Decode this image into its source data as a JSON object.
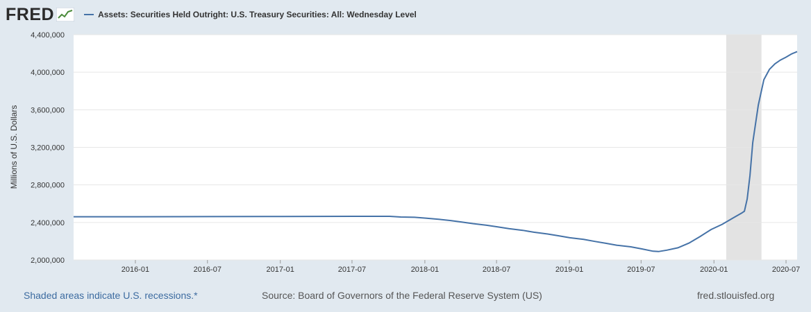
{
  "header": {
    "logo": "FRED",
    "logo_icon": "trend-line-icon",
    "legend_label": "Assets: Securities Held Outright: U.S. Treasury Securities: All: Wednesday Level"
  },
  "footer": {
    "recession_note": "Shaded areas indicate U.S. recessions.*",
    "source": "Source: Board of Governors of the Federal Reserve System (US)",
    "site": "fred.stlouisfed.org"
  },
  "colors": {
    "background": "#e1e9f0",
    "plot_background": "#ffffff",
    "series": "#4572a7",
    "recession": "#e3e3e3",
    "link": "#3c6ba0"
  },
  "chart_data": {
    "type": "line",
    "title": "",
    "xlabel": "",
    "ylabel": "Millions of U.S. Dollars",
    "ylim": [
      2000000,
      4400000
    ],
    "xlim": [
      "2015-07-29",
      "2020-07-29"
    ],
    "grid": true,
    "yticks": [
      2000000,
      2400000,
      2800000,
      3200000,
      3600000,
      4000000,
      4400000
    ],
    "ytick_labels": [
      "2,000,000",
      "2,400,000",
      "2,800,000",
      "3,200,000",
      "3,600,000",
      "4,000,000",
      "4,400,000"
    ],
    "xticks": [
      "2016-01-01",
      "2016-07-01",
      "2017-01-01",
      "2017-07-01",
      "2018-01-01",
      "2018-07-01",
      "2019-01-01",
      "2019-07-01",
      "2020-01-01",
      "2020-07-01"
    ],
    "xtick_labels": [
      "2016-01",
      "2016-07",
      "2017-01",
      "2017-07",
      "2018-01",
      "2018-07",
      "2019-01",
      "2019-07",
      "2020-01",
      "2020-07"
    ],
    "recessions": [
      {
        "start": "2020-02-01",
        "end": "2020-04-30"
      }
    ],
    "series": [
      {
        "x": [
          "2015-07-29",
          "2016-01-06",
          "2016-07-06",
          "2017-01-04",
          "2017-07-05",
          "2017-10-04",
          "2017-11-01",
          "2017-12-06",
          "2018-01-03",
          "2018-02-07",
          "2018-03-07",
          "2018-04-04",
          "2018-05-02",
          "2018-06-06",
          "2018-07-04",
          "2018-08-01",
          "2018-09-05",
          "2018-10-03",
          "2018-11-07",
          "2018-12-05",
          "2019-01-02",
          "2019-02-06",
          "2019-03-06",
          "2019-04-03",
          "2019-05-01",
          "2019-06-05",
          "2019-07-03",
          "2019-07-31",
          "2019-08-14",
          "2019-09-04",
          "2019-10-02",
          "2019-10-30",
          "2019-11-27",
          "2019-12-25",
          "2020-01-22",
          "2020-02-19",
          "2020-03-11",
          "2020-03-18",
          "2020-03-25",
          "2020-04-01",
          "2020-04-08",
          "2020-04-22",
          "2020-05-06",
          "2020-05-20",
          "2020-06-03",
          "2020-06-17",
          "2020-07-01",
          "2020-07-15",
          "2020-07-29"
        ],
        "y": [
          2461000,
          2461000,
          2462000,
          2464000,
          2465000,
          2465000,
          2458000,
          2455000,
          2446000,
          2433000,
          2420000,
          2405000,
          2388000,
          2370000,
          2352000,
          2334000,
          2316000,
          2296000,
          2277000,
          2258000,
          2237000,
          2219000,
          2198000,
          2178000,
          2157000,
          2140000,
          2118000,
          2094000,
          2090000,
          2105000,
          2130000,
          2180000,
          2250000,
          2325000,
          2380000,
          2450000,
          2500000,
          2520000,
          2650000,
          2900000,
          3250000,
          3650000,
          3920000,
          4030000,
          4090000,
          4130000,
          4160000,
          4195000,
          4220000
        ]
      }
    ]
  }
}
